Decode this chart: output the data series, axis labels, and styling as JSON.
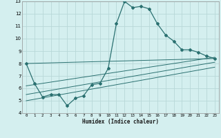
{
  "title": "",
  "xlabel": "Humidex (Indice chaleur)",
  "ylabel": "",
  "bg_color": "#d4efef",
  "grid_color": "#b8d8d8",
  "line_color": "#2a7070",
  "xlim": [
    -0.5,
    23.5
  ],
  "ylim": [
    4,
    13
  ],
  "xticks": [
    0,
    1,
    2,
    3,
    4,
    5,
    6,
    7,
    8,
    9,
    10,
    11,
    12,
    13,
    14,
    15,
    16,
    17,
    18,
    19,
    20,
    21,
    22,
    23
  ],
  "yticks": [
    4,
    5,
    6,
    7,
    8,
    9,
    10,
    11,
    12,
    13
  ],
  "main_x": [
    0,
    1,
    2,
    3,
    4,
    5,
    6,
    7,
    8,
    9,
    10,
    11,
    12,
    13,
    14,
    15,
    16,
    17,
    18,
    19,
    20,
    21,
    22,
    23
  ],
  "main_y": [
    8.0,
    6.4,
    5.3,
    5.5,
    5.5,
    4.6,
    5.2,
    5.4,
    6.3,
    6.4,
    7.6,
    11.2,
    13.0,
    12.5,
    12.6,
    12.4,
    11.2,
    10.3,
    9.8,
    9.1,
    9.1,
    8.9,
    8.6,
    8.4
  ],
  "trend_lines": [
    {
      "x": [
        0,
        23
      ],
      "y": [
        8.0,
        8.4
      ]
    },
    {
      "x": [
        0,
        23
      ],
      "y": [
        6.2,
        8.5
      ]
    },
    {
      "x": [
        0,
        23
      ],
      "y": [
        5.5,
        8.1
      ]
    },
    {
      "x": [
        0,
        23
      ],
      "y": [
        5.0,
        7.7
      ]
    }
  ]
}
